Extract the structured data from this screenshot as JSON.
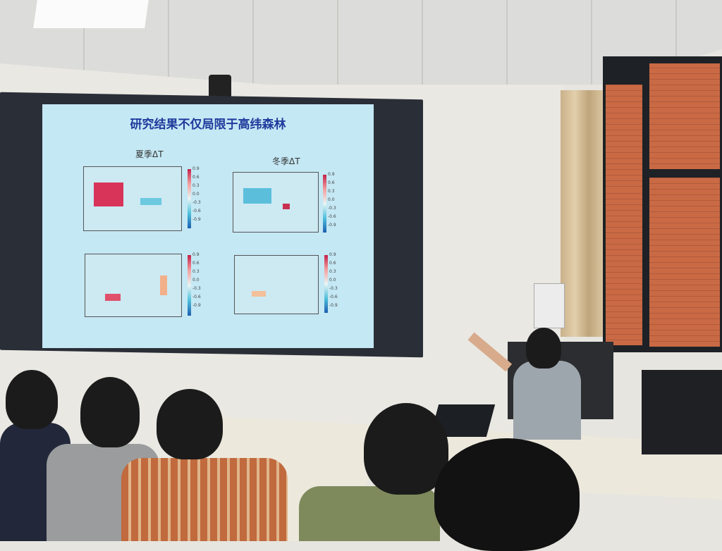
{
  "slide": {
    "title": "研究结果不仅局限于高纬森林",
    "summer_label": "夏季ΔT",
    "winter_label": "冬季ΔT",
    "colorbar_ticks": [
      "0.9",
      "0.6",
      "0.3",
      "0.0",
      "-0.3",
      "-0.6",
      "-0.9"
    ]
  }
}
